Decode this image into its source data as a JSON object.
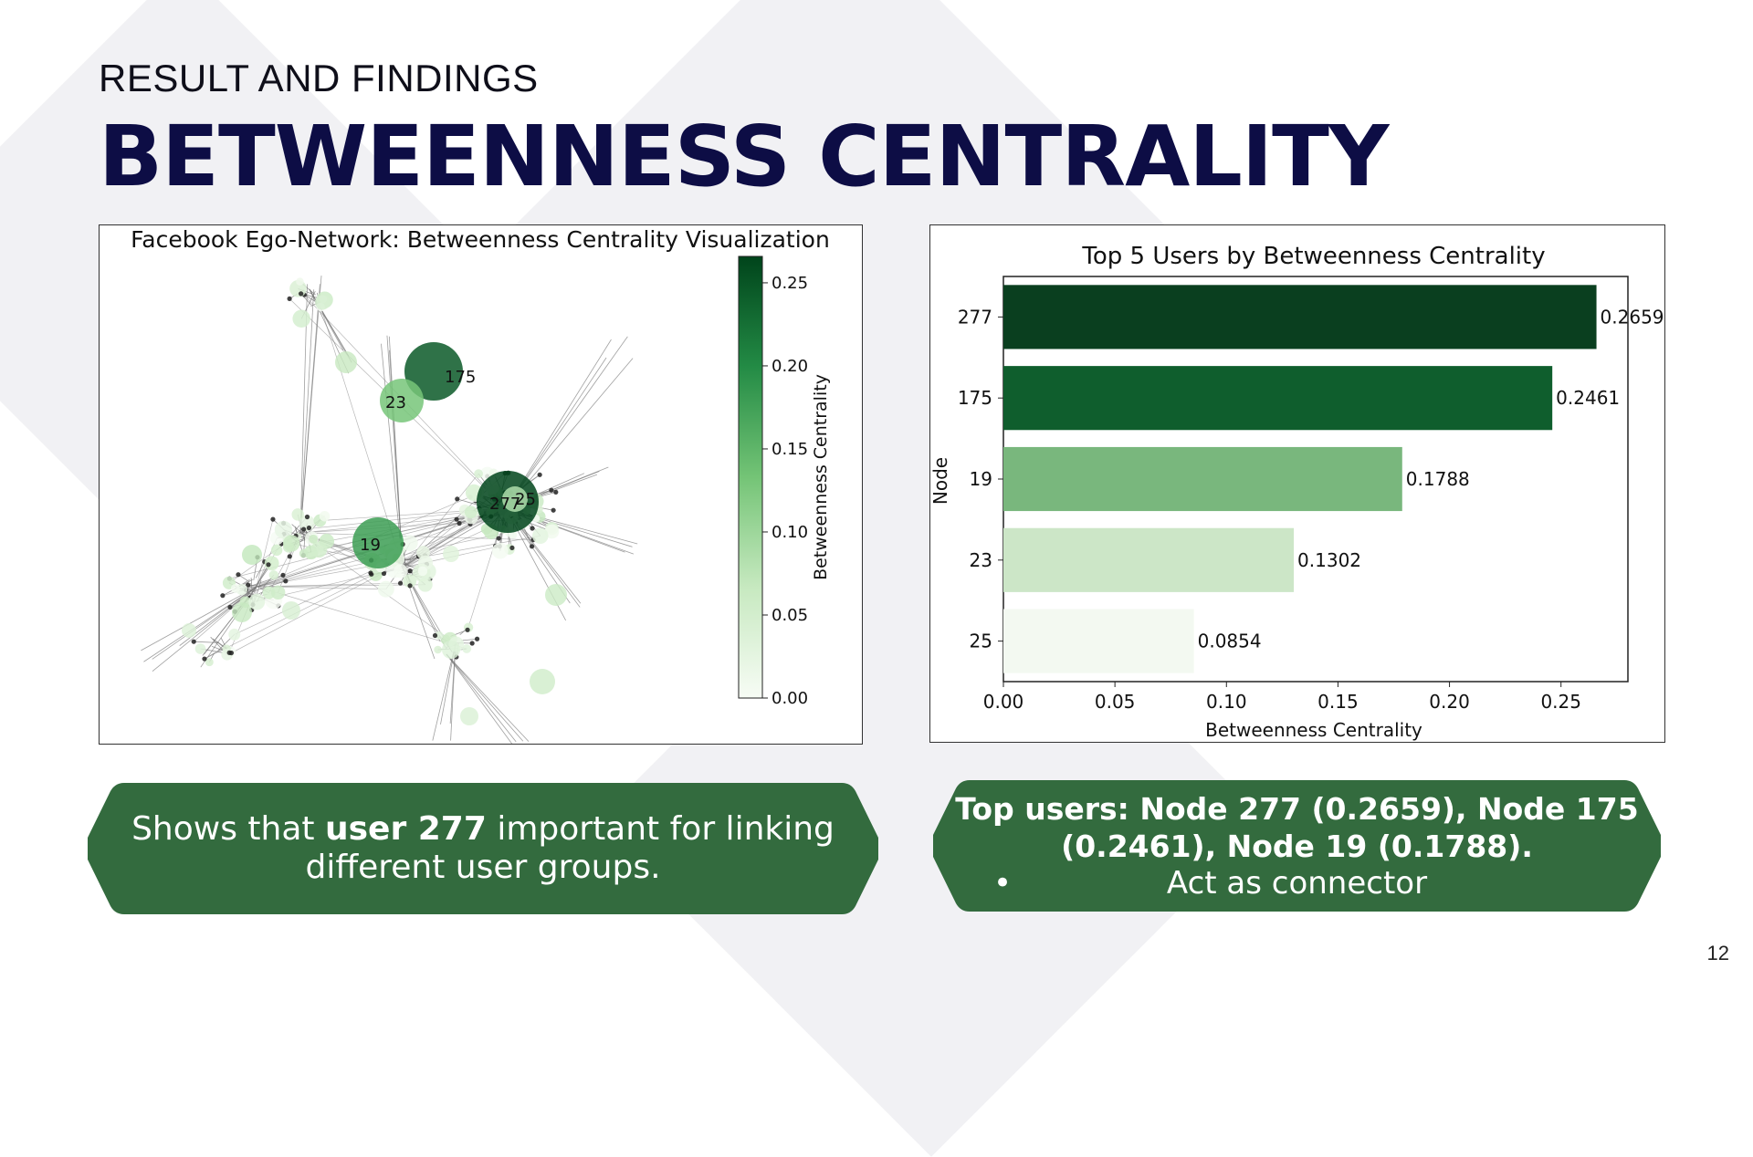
{
  "slide": {
    "subtitle": "RESULT AND FINDINGS",
    "title": "BETWEENNESS CENTRALITY",
    "page_number": "12",
    "accent_color": "#336b3e",
    "title_color": "#0d0d45"
  },
  "network_figure": {
    "title": "Facebook Ego-Network: Betweenness Centrality Visualization",
    "node_labels": [
      {
        "label": "175",
        "value": 0.2461
      },
      {
        "label": "23",
        "value": 0.1302
      },
      {
        "label": "277",
        "value": 0.2659
      },
      {
        "label": "25",
        "value": 0.0854
      },
      {
        "label": "19",
        "value": 0.1788
      }
    ],
    "colorbar": {
      "label": "Betweenness Centrality",
      "ticks": [
        "0.00",
        "0.05",
        "0.10",
        "0.15",
        "0.20",
        "0.25"
      ],
      "range": [
        0,
        0.2659
      ],
      "colormap": [
        "#f7fcf5",
        "#c7e9c0",
        "#74c476",
        "#238b45",
        "#00441b"
      ]
    }
  },
  "chart_data": {
    "type": "bar",
    "orientation": "horizontal",
    "title": "Top 5 Users by Betweenness Centrality",
    "xlabel": "Betweenness Centrality",
    "ylabel": "Node",
    "categories": [
      "277",
      "175",
      "19",
      "23",
      "25"
    ],
    "values": [
      0.2659,
      0.2461,
      0.1788,
      0.1302,
      0.0854
    ],
    "value_labels": [
      "0.2659",
      "0.2461",
      "0.1788",
      "0.1302",
      "0.0854"
    ],
    "bar_colors": [
      "#0a3f1f",
      "#0f5e2d",
      "#79b77d",
      "#cce6c7",
      "#f3f9f1"
    ],
    "xticks": [
      "0.00",
      "0.05",
      "0.10",
      "0.15",
      "0.20",
      "0.25"
    ],
    "xlim": [
      0,
      0.28
    ],
    "grid": false
  },
  "callouts": {
    "left": {
      "before": "Shows that ",
      "bold": "user 277",
      "after_line1": " important for linking",
      "line2": "different user groups."
    },
    "right": {
      "line1": "Top users: Node 277 (0.2659), Node 175",
      "line2": "(0.2461), Node 19 (0.1788).",
      "bullet_text": "Act as connector"
    }
  }
}
